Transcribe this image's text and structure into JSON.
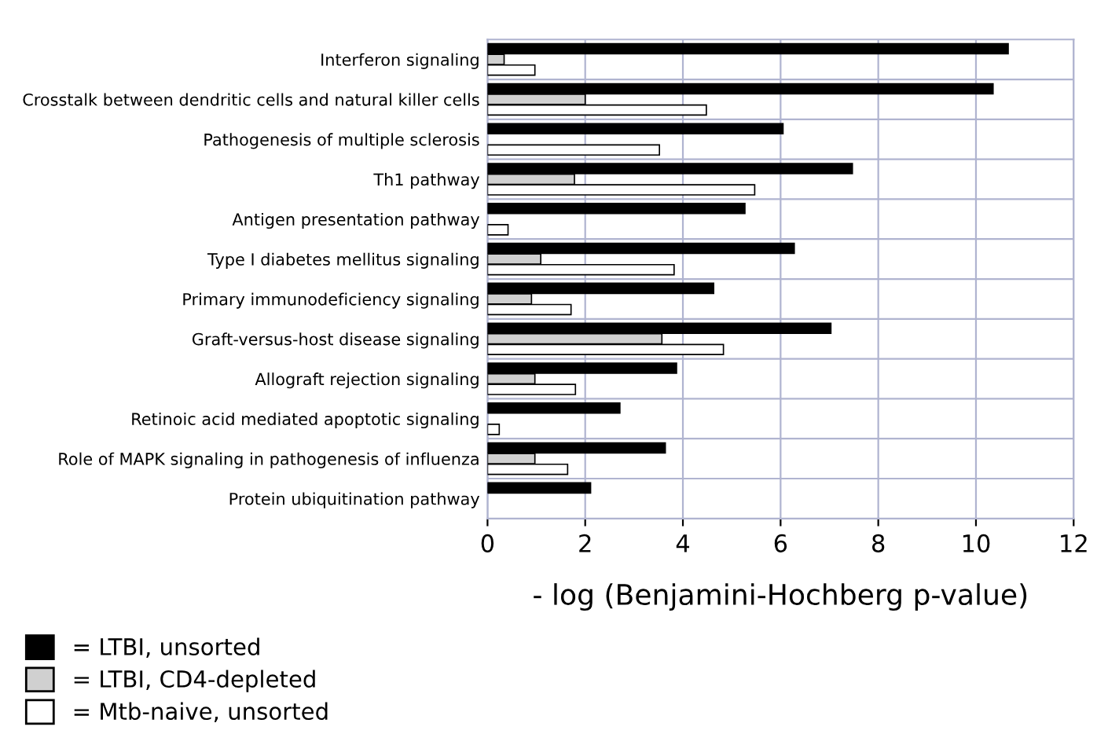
{
  "chart_data": {
    "type": "bar",
    "orientation": "horizontal",
    "xlabel": "- log (Benjamini-Hochberg p-value)",
    "categories": [
      "Interferon signaling",
      "Crosstalk between dendritic cells and natural killer cells",
      "Pathogenesis of multiple sclerosis",
      "Th1 pathway",
      "Antigen presentation pathway",
      "Type I diabetes mellitus signaling",
      "Primary immunodeficiency signaling",
      "Graft-versus-host disease signaling",
      "Allograft rejection signaling",
      "Retinoic acid mediated apoptotic signaling",
      "Role of MAPK signaling in pathogenesis of influenza",
      "Protein ubiquitination pathway"
    ],
    "series": [
      {
        "name": "= LTBI, unsorted",
        "color": "#000000",
        "values": [
          10.66,
          10.35,
          6.05,
          7.47,
          5.27,
          6.28,
          4.63,
          7.03,
          3.87,
          2.71,
          3.64,
          2.11
        ]
      },
      {
        "name": "= LTBI, CD4-depleted",
        "color": "#d0d0d0",
        "values": [
          0.34,
          2.0,
          null,
          1.78,
          null,
          1.09,
          0.9,
          3.57,
          0.97,
          null,
          0.97,
          null
        ]
      },
      {
        "name": "= Mtb-naive, unsorted",
        "color": "#ffffff",
        "values": [
          0.97,
          4.48,
          3.52,
          5.47,
          0.42,
          3.82,
          1.71,
          4.83,
          1.8,
          0.24,
          1.64,
          null
        ]
      }
    ],
    "xlim": [
      0,
      12
    ],
    "xticks": [
      0,
      2,
      4,
      6,
      8,
      10,
      12
    ],
    "grid": true,
    "legend": "bottom left"
  }
}
